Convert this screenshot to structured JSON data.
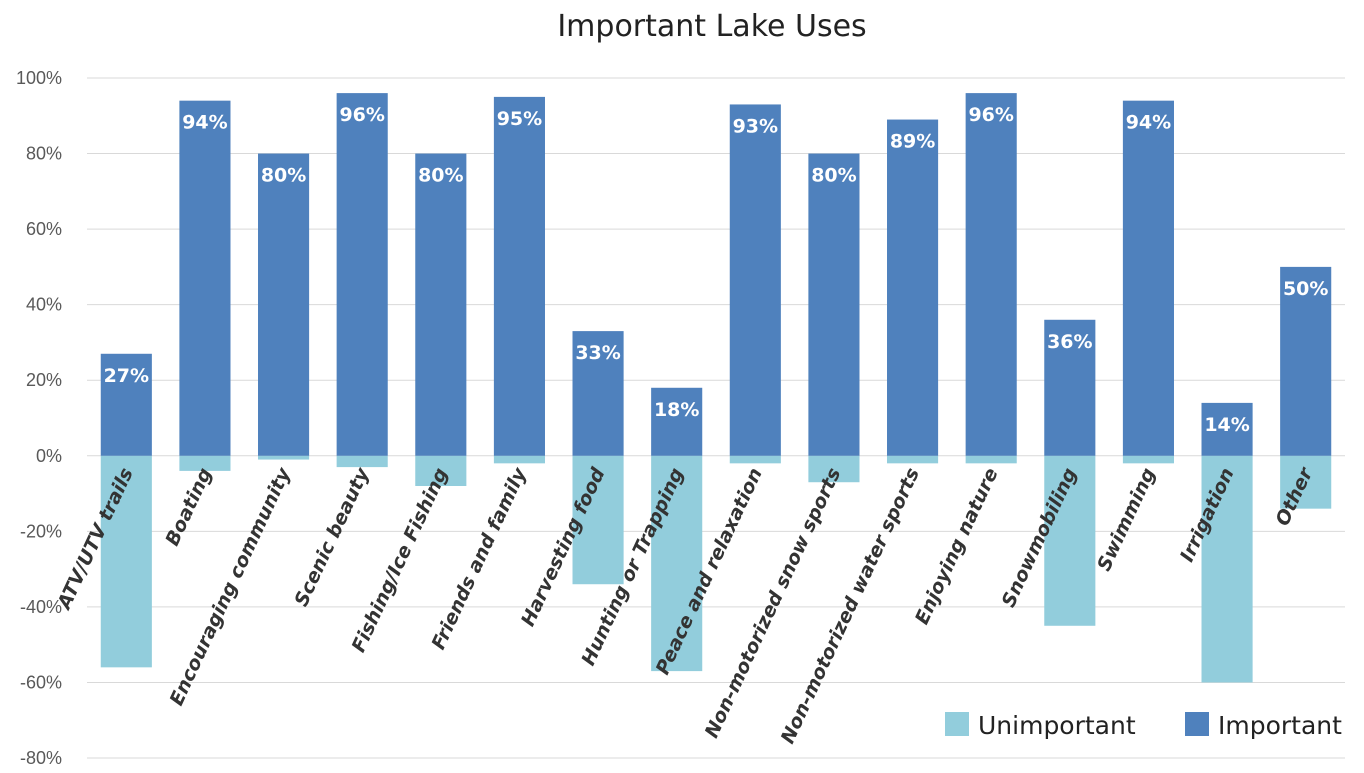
{
  "chart_data": {
    "type": "bar",
    "title": "Important Lake Uses",
    "xlabel": "",
    "ylabel": "",
    "ylim": [
      -80,
      100
    ],
    "ytick_step": 20,
    "grid": true,
    "legend_position": "bottom-right",
    "categories": [
      "ATV/UTV trails",
      "Boating",
      "Encouraging community",
      "Scenic beauty",
      "Fishing/Ice Fishing",
      "Friends and family",
      "Harvesting food",
      "Hunting or Trapping",
      "Peace and relaxation",
      "Non-motorized snow sports",
      "Non-motorized water sports",
      "Enjoying nature",
      "Snowmobiling",
      "Swimming",
      "Irrigation",
      "Other"
    ],
    "series": [
      {
        "name": "Unimportant",
        "color": "#92cddc",
        "values": [
          -56,
          -4,
          -1,
          -3,
          -8,
          -2,
          -34,
          -57,
          -2,
          -7,
          -2,
          -2,
          -45,
          -2,
          -60,
          -14
        ]
      },
      {
        "name": "Important",
        "color": "#4f81bd",
        "values": [
          27,
          94,
          80,
          96,
          80,
          95,
          33,
          18,
          93,
          80,
          89,
          96,
          36,
          94,
          14,
          50
        ],
        "data_labels": [
          "27%",
          "94%",
          "80%",
          "96%",
          "80%",
          "95%",
          "33%",
          "18%",
          "93%",
          "80%",
          "89%",
          "96%",
          "36%",
          "94%",
          "14%",
          "50%"
        ]
      }
    ]
  }
}
